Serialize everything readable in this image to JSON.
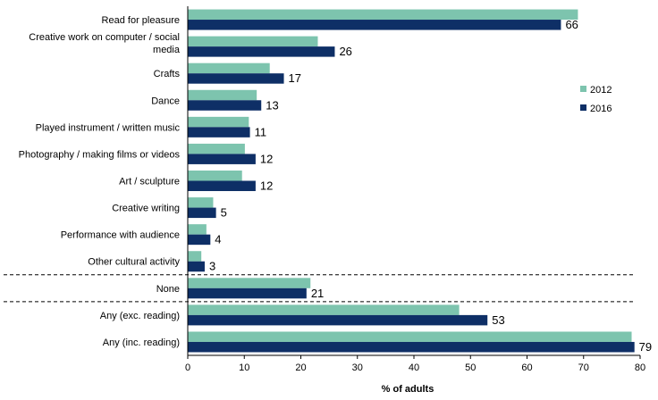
{
  "chart_data": {
    "type": "bar",
    "orientation": "horizontal",
    "categories": [
      "Read for pleasure",
      "Creative work on computer / social media",
      "Crafts",
      "Dance",
      "Played instrument / written music",
      "Photography / making films or videos",
      "Art / sculpture",
      "Creative writing",
      "Performance with audience",
      "Other cultural activity",
      "None",
      "Any (exc. reading)",
      "Any (inc. reading)"
    ],
    "category_lines": [
      [
        "Read for pleasure"
      ],
      [
        "Creative work on computer / social",
        "media"
      ],
      [
        "Crafts"
      ],
      [
        "Dance"
      ],
      [
        "Played instrument / written music"
      ],
      [
        "Photography / making films or videos"
      ],
      [
        "Art / sculpture"
      ],
      [
        "Creative writing"
      ],
      [
        "Performance with audience"
      ],
      [
        "Other cultural activity"
      ],
      [
        "None"
      ],
      [
        "Any (exc. reading)"
      ],
      [
        "Any (inc. reading)"
      ]
    ],
    "series": [
      {
        "name": "2012",
        "color": "#7dc4ae",
        "values": [
          69,
          23,
          14.5,
          12.2,
          10.8,
          10.1,
          9.6,
          4.5,
          3.3,
          2.4,
          21.7,
          48,
          78.5
        ]
      },
      {
        "name": "2016",
        "color": "#0e2f66",
        "values": [
          66,
          26,
          17,
          13,
          11,
          12,
          12,
          5,
          4,
          3,
          21,
          53,
          79
        ]
      }
    ],
    "data_labels": {
      "series": "2016",
      "labels": [
        "66",
        "26",
        "17",
        "13",
        "11",
        "12",
        "12",
        "5",
        "4",
        "3",
        "21",
        "53",
        "79"
      ]
    },
    "separators_after": [
      "Other cultural activity",
      "None"
    ],
    "xlim": [
      0,
      80
    ],
    "xticks": [
      "0",
      "10",
      "20",
      "30",
      "40",
      "50",
      "60",
      "70",
      "80"
    ],
    "xlabel": "% of adults",
    "ylabel": "",
    "title": "",
    "legend": {
      "placement": "right",
      "entries": [
        "2012",
        "2016"
      ]
    },
    "grid": false
  }
}
